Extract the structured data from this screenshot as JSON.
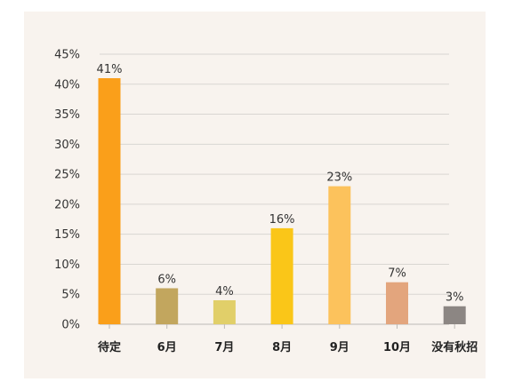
{
  "chart_data": {
    "type": "bar",
    "categories": [
      "待定",
      "6月",
      "7月",
      "8月",
      "9月",
      "10月",
      "没有秋招"
    ],
    "values": [
      41,
      6,
      4,
      16,
      23,
      7,
      3
    ],
    "data_labels": [
      "41%",
      "6%",
      "4%",
      "16%",
      "23%",
      "7%",
      "3%"
    ],
    "bar_colors": [
      "#fa9f1a",
      "#c2a65e",
      "#e1cf69",
      "#fac618",
      "#fcc25c",
      "#e3a57d",
      "#8c8683"
    ],
    "ylim": [
      0,
      45
    ],
    "y_ticks": [
      0,
      5,
      10,
      15,
      20,
      25,
      30,
      35,
      40,
      45
    ],
    "y_tick_labels": [
      "0%",
      "5%",
      "10%",
      "15%",
      "20%",
      "25%",
      "30%",
      "35%",
      "40%",
      "45%"
    ],
    "grid": true,
    "legend": "none",
    "title": "",
    "xlabel": "",
    "ylabel": ""
  },
  "style": {
    "panel_background": "#f8f3ee",
    "grid_color": "#d9d6d2",
    "axis_color": "#bdbab6"
  }
}
